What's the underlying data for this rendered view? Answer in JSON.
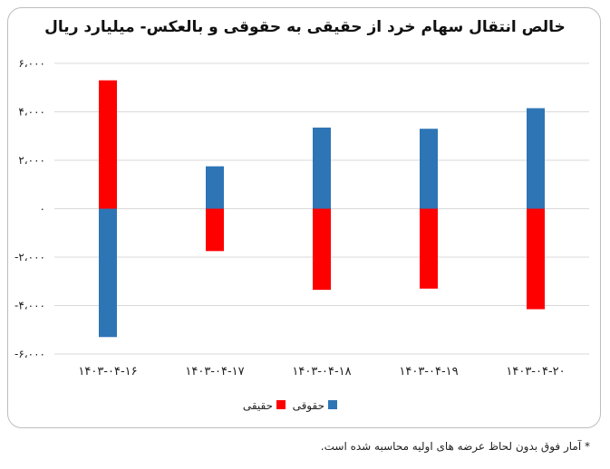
{
  "chart_data": {
    "type": "bar",
    "stacked": true,
    "title": "خالص انتقال سهام خرد از حقیقی به حقوقی و بالعکس- میلیارد ریال",
    "categories": [
      "۱۴۰۳-۰۴-۱۶",
      "۱۴۰۳-۰۴-۱۷",
      "۱۴۰۳-۰۴-۱۸",
      "۱۴۰۳-۰۴-۱۹",
      "۱۴۰۳-۰۴-۲۰"
    ],
    "series": [
      {
        "name": "حقیقی",
        "color": "#ff0000",
        "values": [
          5300,
          -1750,
          -3350,
          -3300,
          -4150
        ]
      },
      {
        "name": "حقوقی",
        "color": "#2e75b6",
        "values": [
          -5300,
          1750,
          3350,
          3300,
          4150
        ]
      }
    ],
    "ylim": [
      -6000,
      6000
    ],
    "yticks": [
      -6000,
      -4000,
      -2000,
      0,
      2000,
      4000,
      6000
    ],
    "ytick_labels": [
      "-۶،۰۰۰",
      "-۴،۰۰۰",
      "-۲،۰۰۰",
      "۰",
      "۲،۰۰۰",
      "۴،۰۰۰",
      "۶،۰۰۰"
    ],
    "grid": true,
    "legend_position": "bottom"
  },
  "footnote": "* آمار فوق بدون لحاظ عرضه های اولیه محاسبه شده است."
}
